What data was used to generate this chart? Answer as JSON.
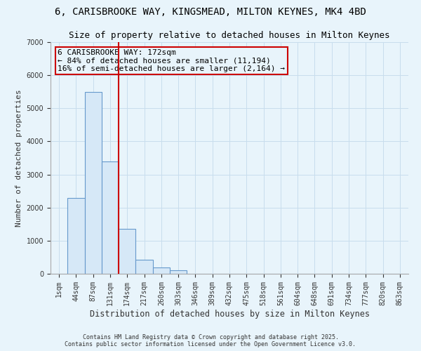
{
  "title_line1": "6, CARISBROOKE WAY, KINGSMEAD, MILTON KEYNES, MK4 4BD",
  "title_line2": "Size of property relative to detached houses in Milton Keynes",
  "xlabel": "Distribution of detached houses by size in Milton Keynes",
  "ylabel": "Number of detached properties",
  "categories": [
    "1sqm",
    "44sqm",
    "87sqm",
    "131sqm",
    "174sqm",
    "217sqm",
    "260sqm",
    "303sqm",
    "346sqm",
    "389sqm",
    "432sqm",
    "475sqm",
    "518sqm",
    "561sqm",
    "604sqm",
    "648sqm",
    "691sqm",
    "734sqm",
    "777sqm",
    "820sqm",
    "863sqm"
  ],
  "values": [
    0,
    2300,
    5500,
    3400,
    1350,
    420,
    200,
    100,
    10,
    0,
    0,
    0,
    0,
    0,
    0,
    0,
    0,
    0,
    0,
    0,
    0
  ],
  "bar_color": "#d6e8f7",
  "bar_edge_color": "#6699cc",
  "grid_color": "#c8dded",
  "annotation_text": "6 CARISBROOKE WAY: 172sqm\n← 84% of detached houses are smaller (11,194)\n16% of semi-detached houses are larger (2,164) →",
  "vline_x_index": 4.0,
  "vline_color": "#cc0000",
  "annotation_box_color": "#cc0000",
  "ylim": [
    0,
    7000
  ],
  "footer_line1": "Contains HM Land Registry data © Crown copyright and database right 2025.",
  "footer_line2": "Contains public sector information licensed under the Open Government Licence v3.0.",
  "background_color": "#e8f4fb",
  "title_fontsize": 10,
  "subtitle_fontsize": 9,
  "annotation_fontsize": 8
}
